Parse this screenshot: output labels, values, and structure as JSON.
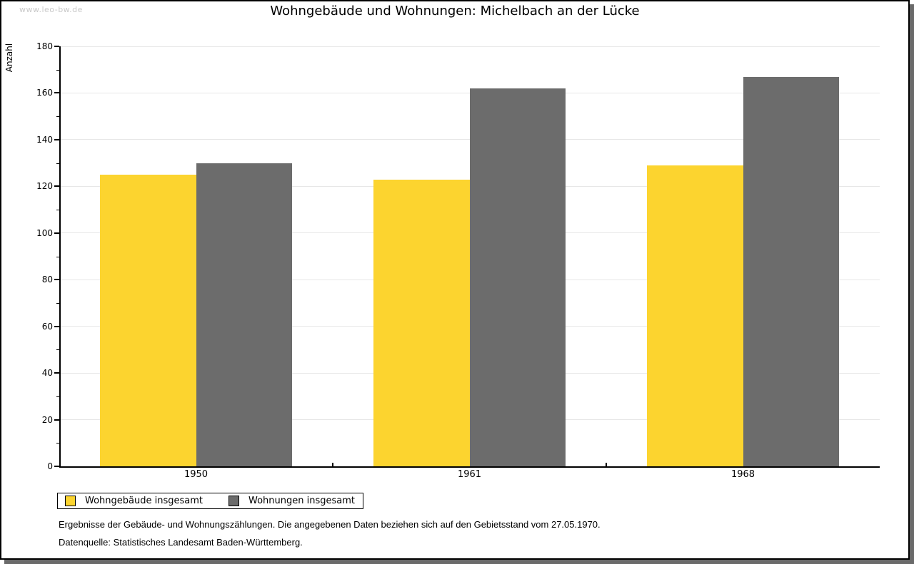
{
  "watermark": "www.leo-bw.de",
  "title": "Wohngebäude und Wohnungen: Michelbach an der Lücke",
  "chart_data": {
    "type": "bar",
    "title": "Wohngebäude und Wohnungen: Michelbach an der Lücke",
    "xlabel": "",
    "ylabel": "Anzahl",
    "categories": [
      "1950",
      "1961",
      "1968"
    ],
    "series": [
      {
        "name": "Wohngebäude insgesamt",
        "color": "#fcd42f",
        "values": [
          125,
          123,
          129
        ]
      },
      {
        "name": "Wohnungen insgesamt",
        "color": "#6c6c6c",
        "values": [
          130,
          162,
          167
        ]
      }
    ],
    "ylim": [
      0,
      180
    ],
    "ytick_major_step": 20,
    "ytick_minor_step": 10,
    "grid": "horizontal-major-on",
    "legend_position": "bottom-left"
  },
  "footnotes": {
    "line1": "Ergebnisse der Gebäude- und Wohnungszählungen. Die angegebenen Daten beziehen sich auf den Gebietsstand vom 27.05.1970.",
    "line2": "Datenquelle: Statistisches Landesamt Baden-Württemberg."
  },
  "colors": {
    "bar_yellow": "#fcd42f",
    "bar_gray": "#6c6c6c",
    "gridline": "#e7e7e7",
    "axis": "#000000",
    "frame_border": "#000000",
    "frame_shadow": "#6a6a6a",
    "watermark": "#c9c9c9",
    "background": "#ffffff"
  }
}
